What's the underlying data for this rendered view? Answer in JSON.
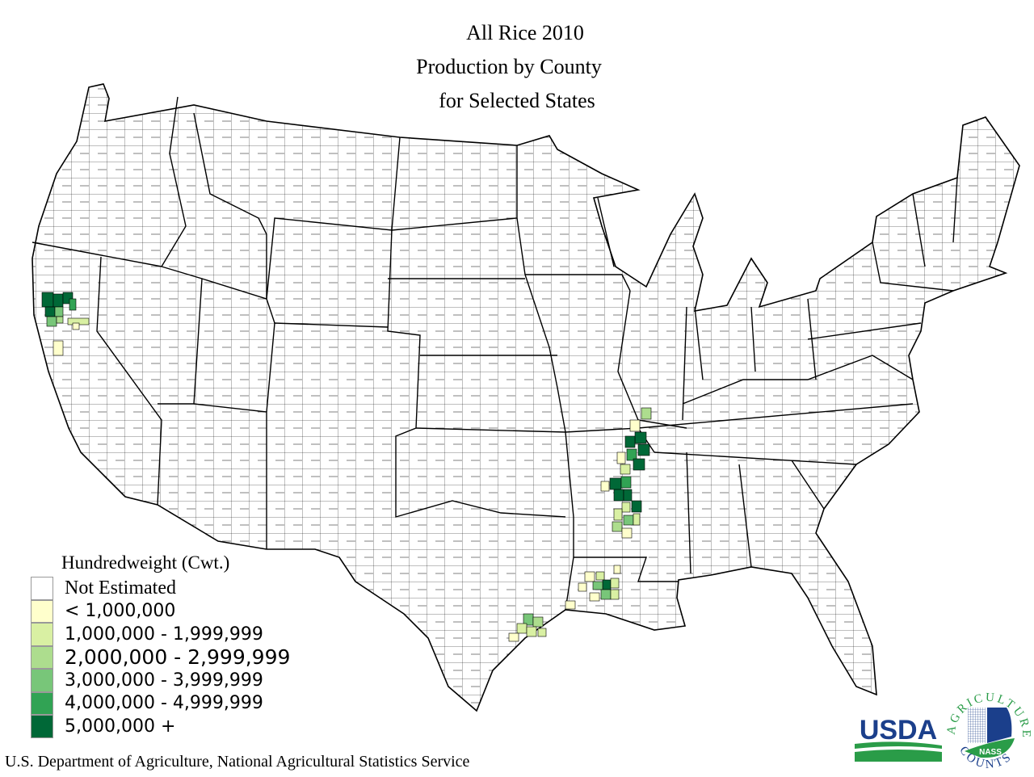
{
  "title": {
    "line1": "All Rice 2010",
    "line2": "Production by County",
    "line3": "for Selected States"
  },
  "legend": {
    "title": "Hundredweight (Cwt.)",
    "items": [
      {
        "label": "Not Estimated",
        "color": "#ffffff"
      },
      {
        "label": "< 1,000,000",
        "color": "#ffffcc"
      },
      {
        "label": "1,000,000 - 1,999,999",
        "color": "#d9f0a3"
      },
      {
        "label": "2,000,000 - 2,999,999",
        "color": "#addd8e"
      },
      {
        "label": "3,000,000 - 3,999,999",
        "color": "#78c679"
      },
      {
        "label": "4,000,000 - 4,999,999",
        "color": "#31a354"
      },
      {
        "label": "5,000,000 +",
        "color": "#006837"
      }
    ]
  },
  "footer": "U.S. Department of Agriculture, National Agricultural Statistics Service",
  "logos": {
    "usda": "USDA",
    "nass_arc_top": "AGRICULTURE",
    "nass_arc_bottom": "COUNTS",
    "nass_badge": "NASS"
  },
  "colors": {
    "usda_blue": "#1b3f8b",
    "usda_green": "#2a9c48",
    "outline": "#000000"
  }
}
